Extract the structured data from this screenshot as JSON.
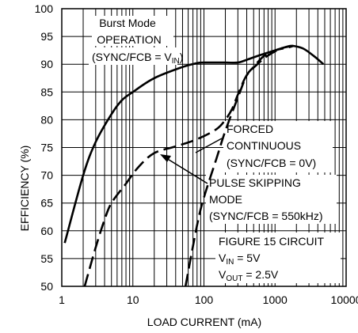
{
  "chart_data": {
    "type": "line",
    "xlabel": "LOAD CURRENT (mA)",
    "ylabel": "EFFICIENCY (%)",
    "x_scale": "log",
    "xlim": [
      1,
      10000
    ],
    "ylim": [
      50,
      100
    ],
    "grid": true,
    "x_ticks": [
      "1",
      "10",
      "100",
      "1000",
      "10000"
    ],
    "y_ticks": [
      "50",
      "55",
      "60",
      "65",
      "70",
      "75",
      "80",
      "85",
      "90",
      "95",
      "100"
    ],
    "series": [
      {
        "style": "solid",
        "points": [
          [
            1.1,
            57.8
          ],
          [
            2,
            70
          ],
          [
            3,
            76
          ],
          [
            5,
            81
          ],
          [
            7,
            83.5
          ],
          [
            10,
            85
          ],
          [
            20,
            87.5
          ],
          [
            50,
            89.5
          ],
          [
            80,
            90.2
          ],
          [
            100,
            90.3
          ],
          [
            200,
            90.3
          ],
          [
            300,
            90.3
          ],
          [
            400,
            90.8
          ],
          [
            600,
            91.6
          ],
          [
            1000,
            92.5
          ],
          [
            1500,
            93.2
          ],
          [
            1800,
            93.3
          ],
          [
            2500,
            92.8
          ],
          [
            3500,
            91.5
          ],
          [
            4800,
            90
          ]
        ]
      },
      {
        "style": "dashed",
        "points": [
          [
            2.1,
            50
          ],
          [
            3,
            57
          ],
          [
            4,
            62
          ],
          [
            5,
            65
          ],
          [
            8,
            68.5
          ],
          [
            12,
            71.5
          ],
          [
            20,
            74
          ],
          [
            40,
            75.2
          ],
          [
            80,
            76.5
          ],
          [
            150,
            78.3
          ],
          [
            200,
            80
          ],
          [
            250,
            82
          ],
          [
            300,
            84.5
          ],
          [
            400,
            88
          ],
          [
            600,
            90.3
          ],
          [
            800,
            91.6
          ],
          [
            1200,
            92.8
          ],
          [
            1600,
            93.2
          ],
          [
            1800,
            93.3
          ]
        ]
      },
      {
        "style": "dashed",
        "points": [
          [
            55,
            50
          ],
          [
            80,
            61
          ],
          [
            100,
            66
          ],
          [
            150,
            73
          ],
          [
            200,
            78
          ],
          [
            300,
            84
          ],
          [
            400,
            88
          ],
          [
            500,
            89.5
          ],
          [
            700,
            91.5
          ],
          [
            1000,
            92.5
          ],
          [
            1500,
            93
          ],
          [
            1800,
            93.3
          ]
        ]
      }
    ],
    "annotations": [
      {
        "id": "burst",
        "lines": [
          "Burst Mode",
          "OPERATION",
          "(SYNC/FCB = V",
          "IN",
          ")"
        ]
      },
      {
        "id": "forced",
        "lines": [
          "FORCED",
          "CONTINUOUS",
          "(SYNC/FCB = 0V)"
        ]
      },
      {
        "id": "pulse",
        "lines": [
          "PULSE SKIPPING",
          "MODE",
          "(SYNC/FCB = 550kHz)"
        ]
      },
      {
        "id": "circuit",
        "lines": [
          "FIGURE 15 CIRCUIT",
          "V",
          "IN",
          " = 5V",
          "V",
          "OUT",
          " = 2.5V"
        ]
      }
    ]
  }
}
